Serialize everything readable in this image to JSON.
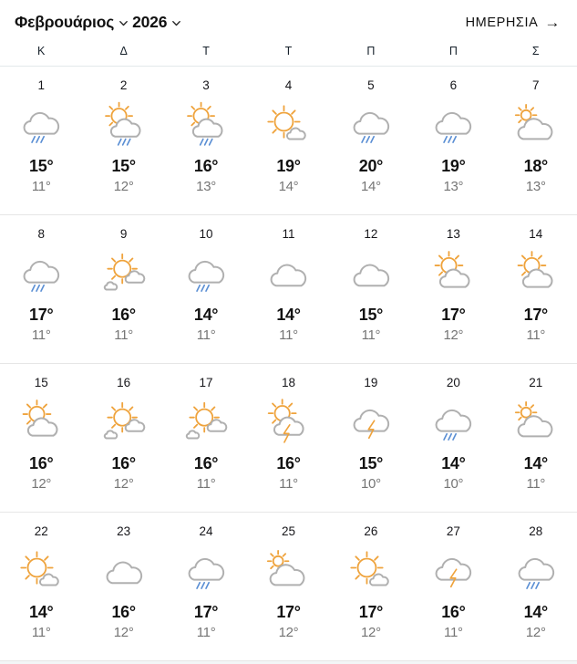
{
  "header": {
    "month": "Φεβρουάριος",
    "year": "2026",
    "view_link": "ΗΜΕΡΗΣΙΑ",
    "view_arrow": "→"
  },
  "calendar": {
    "weekday_headers": [
      "Κ",
      "Δ",
      "Τ",
      "Τ",
      "Π",
      "Π",
      "Σ"
    ],
    "days": [
      {
        "day": "1",
        "icon": "rain-cloud",
        "hi": "15°",
        "lo": "11°"
      },
      {
        "day": "2",
        "icon": "sun-cloud-rain",
        "hi": "15°",
        "lo": "12°"
      },
      {
        "day": "3",
        "icon": "sun-cloud-rain",
        "hi": "16°",
        "lo": "13°"
      },
      {
        "day": "4",
        "icon": "mostly-sunny",
        "hi": "19°",
        "lo": "14°"
      },
      {
        "day": "5",
        "icon": "rain-cloud",
        "hi": "20°",
        "lo": "14°"
      },
      {
        "day": "6",
        "icon": "rain-cloud",
        "hi": "19°",
        "lo": "13°"
      },
      {
        "day": "7",
        "icon": "mostly-cloudy",
        "hi": "18°",
        "lo": "13°"
      },
      {
        "day": "8",
        "icon": "rain-cloud",
        "hi": "17°",
        "lo": "11°"
      },
      {
        "day": "9",
        "icon": "sun-two-clouds",
        "hi": "16°",
        "lo": "11°"
      },
      {
        "day": "10",
        "icon": "rain-cloud",
        "hi": "14°",
        "lo": "11°"
      },
      {
        "day": "11",
        "icon": "cloudy",
        "hi": "14°",
        "lo": "11°"
      },
      {
        "day": "12",
        "icon": "cloudy",
        "hi": "15°",
        "lo": "11°"
      },
      {
        "day": "13",
        "icon": "partly-cloudy",
        "hi": "17°",
        "lo": "12°"
      },
      {
        "day": "14",
        "icon": "partly-cloudy",
        "hi": "17°",
        "lo": "11°"
      },
      {
        "day": "15",
        "icon": "partly-cloudy",
        "hi": "16°",
        "lo": "12°"
      },
      {
        "day": "16",
        "icon": "sun-two-clouds",
        "hi": "16°",
        "lo": "12°"
      },
      {
        "day": "17",
        "icon": "sun-two-clouds",
        "hi": "16°",
        "lo": "11°"
      },
      {
        "day": "18",
        "icon": "sun-thunder",
        "hi": "16°",
        "lo": "11°"
      },
      {
        "day": "19",
        "icon": "thunder-cloud",
        "hi": "15°",
        "lo": "10°"
      },
      {
        "day": "20",
        "icon": "rain-cloud",
        "hi": "14°",
        "lo": "10°"
      },
      {
        "day": "21",
        "icon": "mostly-cloudy",
        "hi": "14°",
        "lo": "11°"
      },
      {
        "day": "22",
        "icon": "mostly-sunny",
        "hi": "14°",
        "lo": "11°"
      },
      {
        "day": "23",
        "icon": "cloudy",
        "hi": "16°",
        "lo": "12°"
      },
      {
        "day": "24",
        "icon": "rain-cloud",
        "hi": "17°",
        "lo": "11°"
      },
      {
        "day": "25",
        "icon": "mostly-cloudy",
        "hi": "17°",
        "lo": "12°"
      },
      {
        "day": "26",
        "icon": "mostly-sunny",
        "hi": "17°",
        "lo": "12°"
      },
      {
        "day": "27",
        "icon": "thunder-cloud",
        "hi": "16°",
        "lo": "11°"
      },
      {
        "day": "28",
        "icon": "rain-cloud",
        "hi": "14°",
        "lo": "12°"
      }
    ]
  },
  "colors": {
    "sun": "#efa33c",
    "cloud": "#b0b0b0",
    "rain": "#5b8fd4",
    "bolt": "#efa33c",
    "hi_text": "#121212",
    "lo_text": "#757575",
    "divider": "#e6e6e6"
  }
}
